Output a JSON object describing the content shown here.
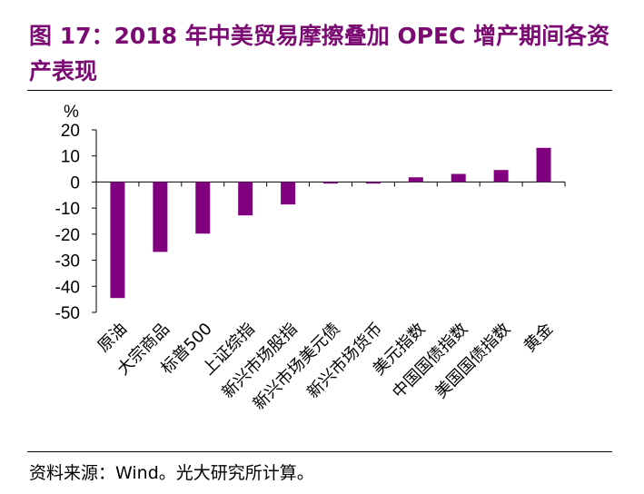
{
  "header": {
    "title": "图 17：2018 年中美贸易摩擦叠加 OPEC 增产期间各资产表现"
  },
  "footer": {
    "source": "资料来源：Wind。光大研究所计算。"
  },
  "chart_data": {
    "type": "bar",
    "title": "图 17：2018 年中美贸易摩擦叠加 OPEC 增产期间各资产表现",
    "ylabel": "%",
    "xlabel": "",
    "ylim": [
      -50,
      20
    ],
    "yticks": [
      20,
      10,
      0,
      -10,
      -20,
      -30,
      -40,
      -50
    ],
    "grid": false,
    "bar_color": "#800080",
    "categories": [
      "原油",
      "大宗商品",
      "标普500",
      "上证综指",
      "新兴市场股指",
      "新兴市场美元债",
      "新兴市场货币",
      "美元指数",
      "中国国债指数",
      "美国国债指数",
      "黄金"
    ],
    "values": [
      -44.5,
      -26.8,
      -19.8,
      -12.8,
      -8.6,
      -0.6,
      -0.6,
      1.8,
      3.1,
      4.6,
      13.1
    ]
  }
}
